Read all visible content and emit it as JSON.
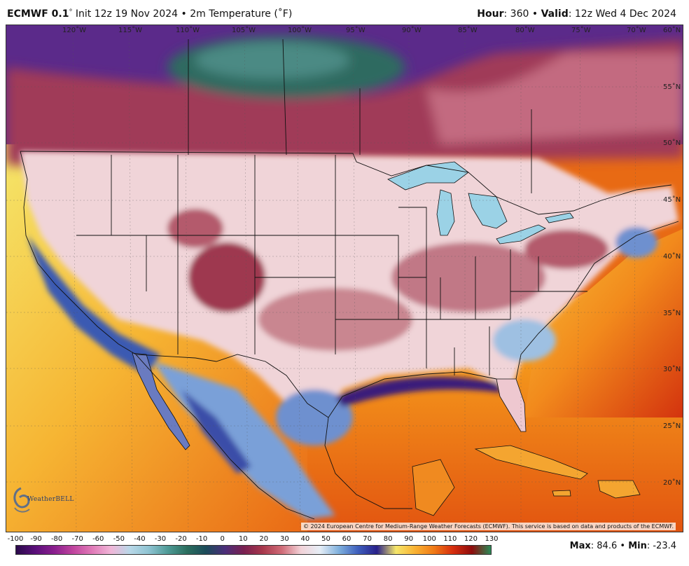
{
  "header": {
    "model": "ECMWF 0.1",
    "degree": "°",
    "init": "Init 12z 19 Nov 2024",
    "bullet": "•",
    "field": "2m Temperature (˚F)",
    "hour_label": "Hour",
    "hour_value": ": 360",
    "valid_label": "Valid",
    "valid_value": ": 12z Wed 4 Dec 2024"
  },
  "map": {
    "longitude_labels": [
      "120˚W",
      "115˚W",
      "110˚W",
      "105˚W",
      "100˚W",
      "95˚W",
      "90˚W",
      "85˚W",
      "80˚W",
      "75˚W",
      "70˚W",
      "60˚N"
    ],
    "latitude_labels": [
      "55˚N",
      "50˚N",
      "45˚N",
      "40˚N",
      "35˚N",
      "30˚N",
      "25˚N",
      "20˚N"
    ],
    "logo_text": "WeatherBELL",
    "credit": "© 2024 European Centre for Medium-Range Weather Forecasts (ECMWF). This service is based on data and products of the ECMWF."
  },
  "colorbar": {
    "ticks": [
      "-100",
      "-90",
      "-80",
      "-70",
      "-60",
      "-50",
      "-40",
      "-30",
      "-20",
      "-10",
      "0",
      "10",
      "20",
      "30",
      "40",
      "50",
      "60",
      "70",
      "80",
      "90",
      "100",
      "110",
      "120",
      "130"
    ],
    "colors": [
      "#2a0a4a",
      "#5a0f7a",
      "#8a1e8e",
      "#c0449e",
      "#e07ab8",
      "#f0b6d8",
      "#b8d8e8",
      "#8ec3d2",
      "#4e9a96",
      "#2b6e5e",
      "#1b4b5a",
      "#4b2e7a",
      "#7a2050",
      "#a8384c",
      "#d06c78",
      "#f2d2d8",
      "#e6eef6",
      "#7fb0dd",
      "#3e5fbd",
      "#28208a",
      "#f5e66a",
      "#f9b233",
      "#f07a16",
      "#d62e0e",
      "#8e0c0c",
      "#2a8a56"
    ]
  },
  "stats": {
    "max_label": "Max",
    "max_value": ": 84.6",
    "separator": "•",
    "min_label": "Min",
    "min_value": ": -23.4"
  }
}
